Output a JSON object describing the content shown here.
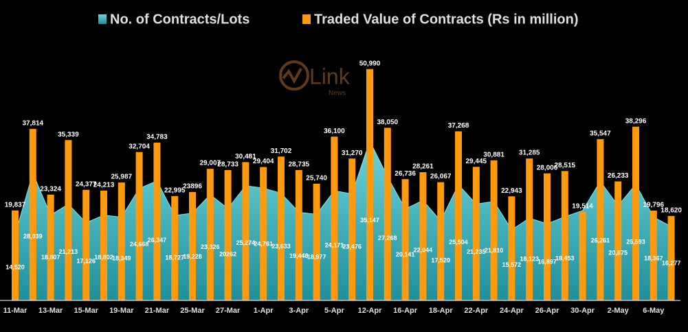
{
  "logo": {
    "text": "Link",
    "sub": "News"
  },
  "chart_data": {
    "type": "bar-area",
    "categories": [
      "11-Mar",
      null,
      "13-Mar",
      null,
      "15-Mar",
      null,
      "19-Mar",
      null,
      "21-Mar",
      null,
      "25-Mar",
      null,
      "27-Mar",
      null,
      "1-Apr",
      null,
      "3-Apr",
      null,
      "5-Apr",
      null,
      "12-Apr",
      null,
      "16-Apr",
      null,
      "18-Apr",
      null,
      "22-Apr",
      null,
      "24-Apr",
      null,
      "26-Apr",
      null,
      "30-Apr",
      null,
      "2-May",
      null,
      "6-May",
      null
    ],
    "ylim": [
      0,
      52000
    ],
    "legend": "top",
    "series": [
      {
        "name": "No. of Contracts/Lots",
        "color": "#4fc3cc",
        "kind": "area",
        "values": [
          14520,
          28039,
          18807,
          21213,
          17126,
          18802,
          18349,
          24668,
          26347,
          18727,
          19228,
          23326,
          20262,
          25274,
          24761,
          23633,
          19448,
          18977,
          24171,
          23476,
          35147,
          27268,
          20141,
          22044,
          17520,
          25504,
          21235,
          21810,
          15572,
          18123,
          16897,
          18453,
          19800,
          26261,
          20875,
          25593,
          18367,
          16277
        ],
        "value_labels": [
          "14,520",
          "28,039",
          "18,807",
          "21,213",
          "17,126",
          "18,802",
          "18,349",
          "24,668",
          "26,347",
          "18,727",
          "19,228",
          "23,326",
          "20262",
          "25,274",
          "24,761",
          "23,633",
          "19,448",
          "18,977",
          "24,171",
          "23,476",
          "35,147",
          "27,268",
          "20,141",
          "22,044",
          "17,520",
          "25,504",
          "21,235",
          "21,810",
          "15,572",
          "18,123",
          "16,897",
          "18,453",
          null,
          "26,261",
          "20,875",
          "25,593",
          "18,367",
          "16,277"
        ]
      },
      {
        "name": "Traded Value of Contracts (Rs in million)",
        "color": "#ff9a0e",
        "kind": "bar",
        "values": [
          19837,
          37814,
          23324,
          35339,
          24377,
          24213,
          25987,
          32704,
          34783,
          22995,
          23896,
          29007,
          28733,
          30481,
          29404,
          31702,
          28735,
          25740,
          36100,
          31270,
          50990,
          38050,
          26736,
          28261,
          26067,
          37268,
          29445,
          30881,
          22943,
          31285,
          28006,
          28515,
          19514,
          35547,
          26233,
          38296,
          19796,
          18620
        ],
        "value_labels": [
          "19,837",
          "37,814",
          "23,324",
          "35,339",
          "24,377",
          "24,213",
          "25,987",
          "32,704",
          "34,783",
          "22,995",
          "23896",
          "29,007",
          "28,733",
          "30,481",
          "29,404",
          "31,702",
          "28,735",
          "25,740",
          "36,100",
          "31,270",
          "50,990",
          "38,050",
          "26,736",
          "28,261",
          "26,067",
          "37,268",
          "29,445",
          "30,881",
          "22,943",
          "31,285",
          "28,006",
          "28,515",
          "19,514",
          "35,547",
          "26,233",
          "38,296",
          "19,796",
          "18,620"
        ]
      }
    ]
  }
}
